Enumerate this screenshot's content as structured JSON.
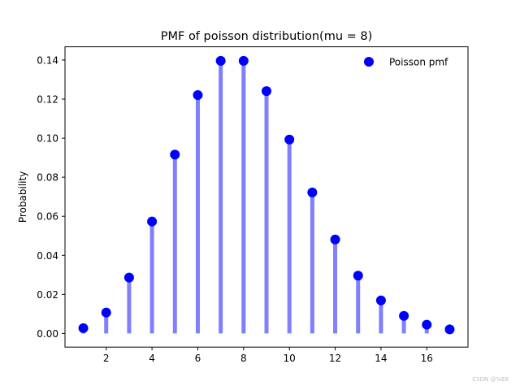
{
  "chart_data": {
    "type": "scatter",
    "title": "PMF of poisson distribution(mu = 8)",
    "xlabel": "",
    "ylabel": "Probability",
    "xlim": [
      0.2,
      17.8
    ],
    "ylim": [
      -0.007,
      0.1468
    ],
    "xticks": [
      2,
      4,
      6,
      8,
      10,
      12,
      14,
      16
    ],
    "yticks": [
      0.0,
      0.02,
      0.04,
      0.06,
      0.08,
      0.1,
      0.12,
      0.14
    ],
    "ytick_labels": [
      "0.00",
      "0.02",
      "0.04",
      "0.06",
      "0.08",
      "0.10",
      "0.12",
      "0.14"
    ],
    "x": [
      1,
      2,
      3,
      4,
      5,
      6,
      7,
      8,
      9,
      10,
      11,
      12,
      13,
      14,
      15,
      16,
      17
    ],
    "series": [
      {
        "name": "Poisson pmf",
        "values": [
          0.0027,
          0.0107,
          0.0286,
          0.0573,
          0.0916,
          0.1221,
          0.1396,
          0.1396,
          0.1241,
          0.0993,
          0.0722,
          0.0481,
          0.0296,
          0.0169,
          0.009,
          0.0045,
          0.0021
        ]
      }
    ],
    "marker_color": "#0000ff",
    "stem_color": "#7f7fff",
    "legend": "top-right",
    "grid": false
  },
  "watermark": "CSDN @%E6"
}
